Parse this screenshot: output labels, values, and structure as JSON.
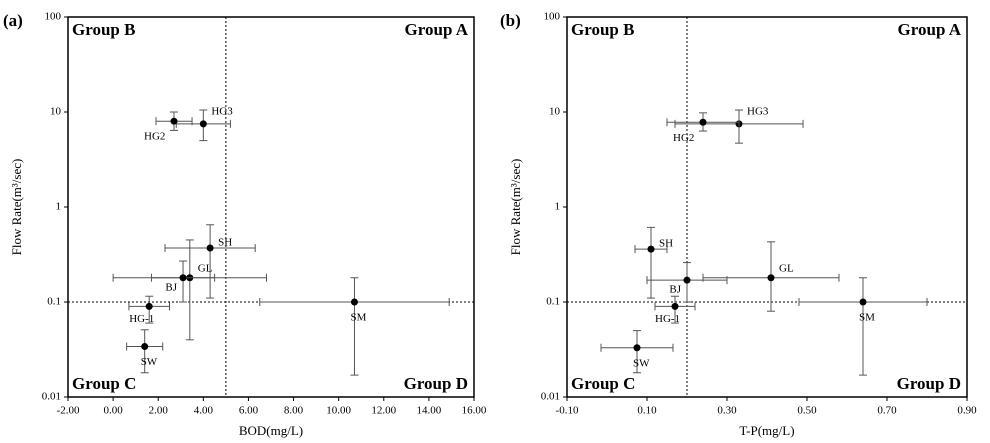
{
  "chart_data": [
    {
      "type": "scatter",
      "panel_label": "(a)",
      "xlabel": "BOD(mg/L)",
      "ylabel": "Flow Rate(m³/sec)",
      "xlim": [
        -2,
        16
      ],
      "xticks": [
        {
          "value": -2,
          "label": "-2.00"
        },
        {
          "value": 0,
          "label": "0.00"
        },
        {
          "value": 2,
          "label": "2.00"
        },
        {
          "value": 4,
          "label": "4.00"
        },
        {
          "value": 6,
          "label": "6.00"
        },
        {
          "value": 8,
          "label": "8.00"
        },
        {
          "value": 10,
          "label": "10.00"
        },
        {
          "value": 12,
          "label": "12.00"
        },
        {
          "value": 14,
          "label": "14.00"
        },
        {
          "value": 16,
          "label": "16.00"
        }
      ],
      "ylim": [
        0.01,
        100
      ],
      "yticks": [
        0.01,
        0.1,
        1,
        10,
        100
      ],
      "log_y": true,
      "x_threshold": 5,
      "y_threshold": 0.1,
      "groups": [
        "Group A",
        "Group B",
        "Group C",
        "Group D"
      ],
      "color": "#000000",
      "labels": [
        "HG3",
        "HG2",
        "SH",
        "GL",
        "BJ",
        "HG-1",
        "SW",
        "SM"
      ],
      "x": [
        4.0,
        2.7,
        4.3,
        3.4,
        3.1,
        1.6,
        1.4,
        10.7
      ],
      "y": [
        7.5,
        8.0,
        0.37,
        0.18,
        0.18,
        0.09,
        0.034,
        0.1
      ],
      "xerr": [
        1.2,
        0.8,
        2.0,
        3.4,
        1.4,
        0.9,
        0.8,
        4.2
      ],
      "yerr_minus": [
        2.5,
        1.6,
        0.26,
        0.14,
        0.08,
        0.03,
        0.016,
        0.083
      ],
      "yerr_plus": [
        3,
        2,
        0.28,
        0.27,
        0.09,
        0.025,
        0.017,
        0.08
      ]
    },
    {
      "type": "scatter",
      "panel_label": "(b)",
      "xlabel": "T-P(mg/L)",
      "ylabel": "Flow Rate(m³/sec)",
      "xlim": [
        -0.1,
        0.9
      ],
      "xticks": [
        {
          "value": -0.1,
          "label": "-0.10"
        },
        {
          "value": 0.1,
          "label": "0.10"
        },
        {
          "value": 0.3,
          "label": "0.30"
        },
        {
          "value": 0.5,
          "label": "0.50"
        },
        {
          "value": 0.7,
          "label": "0.70"
        },
        {
          "value": 0.9,
          "label": "0.90"
        }
      ],
      "ylim": [
        0.01,
        100
      ],
      "yticks": [
        0.01,
        0.1,
        1,
        10,
        100
      ],
      "log_y": true,
      "x_threshold": 0.2,
      "y_threshold": 0.1,
      "groups": [
        "Group A",
        "Group B",
        "Group C",
        "Group D"
      ],
      "color": "#000000",
      "labels": [
        "HG3",
        "HG2",
        "SH",
        "GL",
        "BJ",
        "HG-1",
        "SW",
        "SM"
      ],
      "x": [
        0.33,
        0.24,
        0.11,
        0.41,
        0.2,
        0.17,
        0.075,
        0.64
      ],
      "y": [
        7.5,
        7.8,
        0.36,
        0.18,
        0.17,
        0.09,
        0.033,
        0.1
      ],
      "xerr": [
        0.16,
        0.09,
        0.04,
        0.17,
        0.1,
        0.05,
        0.09,
        0.16
      ],
      "yerr_minus": [
        2.8,
        1.5,
        0.25,
        0.1,
        0.07,
        0.03,
        0.015,
        0.083
      ],
      "yerr_plus": [
        3,
        2,
        0.25,
        0.25,
        0.09,
        0.025,
        0.017,
        0.08
      ]
    }
  ]
}
